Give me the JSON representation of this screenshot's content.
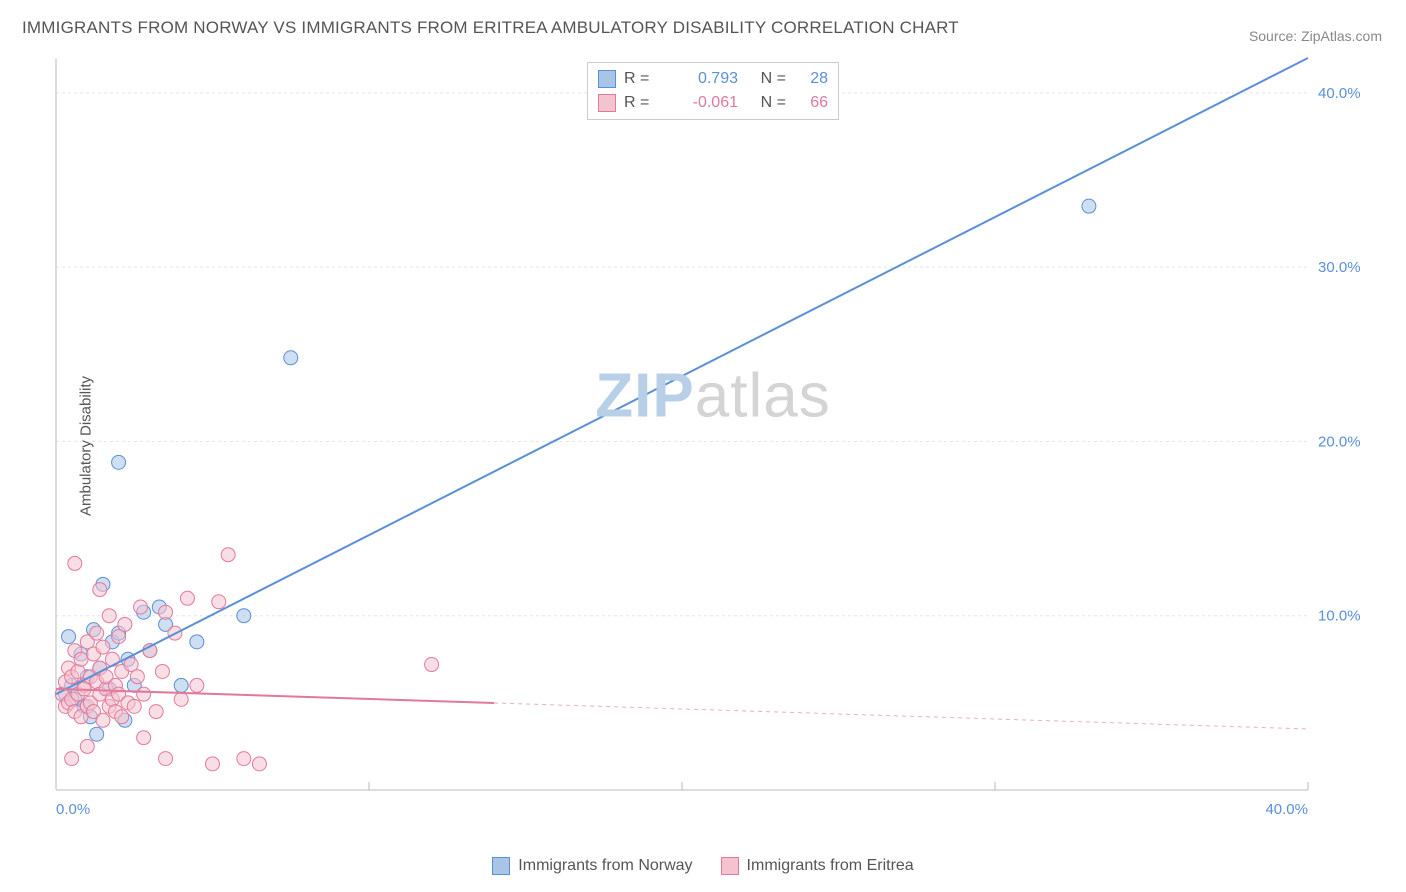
{
  "title": "IMMIGRANTS FROM NORWAY VS IMMIGRANTS FROM ERITREA AMBULATORY DISABILITY CORRELATION CHART",
  "source_label": "Source:",
  "source_name": "ZipAtlas.com",
  "y_axis_label": "Ambulatory Disability",
  "watermark": {
    "part1": "ZIP",
    "part2": "atlas"
  },
  "chart": {
    "type": "scatter",
    "background_color": "#ffffff",
    "grid_color": "#e5e5e5",
    "axis_line_color": "#bbbbbb",
    "x_range": [
      0,
      40
    ],
    "y_range": [
      0,
      42
    ],
    "x_ticks": [
      0,
      10,
      20,
      30,
      40
    ],
    "x_tick_labels": [
      "0.0%",
      "",
      "",
      "",
      "40.0%"
    ],
    "y_ticks": [
      10,
      20,
      30,
      40
    ],
    "y_tick_labels": [
      "10.0%",
      "20.0%",
      "30.0%",
      "40.0%"
    ],
    "tick_label_color_x": "#5b8fd6",
    "tick_label_color_y": "#5b8fd6",
    "tick_fontsize": 15,
    "marker_radius": 7,
    "marker_opacity": 0.55,
    "line_width": 2
  },
  "series": [
    {
      "name": "Immigrants from Norway",
      "color": "#6699dd",
      "fill": "#a8c5e8",
      "stroke": "#5b8fd6",
      "r_value": "0.793",
      "n_value": "28",
      "trend": {
        "x1": 0,
        "y1": 5.5,
        "x2": 40,
        "y2": 42,
        "solid_until": 40
      },
      "points": [
        [
          0.3,
          5.5
        ],
        [
          0.5,
          6.0
        ],
        [
          0.6,
          5.2
        ],
        [
          0.8,
          7.8
        ],
        [
          0.9,
          4.8
        ],
        [
          1.0,
          6.5
        ],
        [
          1.1,
          4.2
        ],
        [
          1.2,
          9.2
        ],
        [
          1.3,
          3.2
        ],
        [
          1.4,
          7.0
        ],
        [
          1.5,
          11.8
        ],
        [
          1.7,
          5.8
        ],
        [
          1.8,
          8.5
        ],
        [
          2.0,
          9.0
        ],
        [
          2.2,
          4.0
        ],
        [
          2.3,
          7.5
        ],
        [
          2.5,
          6.0
        ],
        [
          2.8,
          10.2
        ],
        [
          3.0,
          8.0
        ],
        [
          3.3,
          10.5
        ],
        [
          3.5,
          9.5
        ],
        [
          4.0,
          6.0
        ],
        [
          2.0,
          18.8
        ],
        [
          6.0,
          10.0
        ],
        [
          4.5,
          8.5
        ],
        [
          7.5,
          24.8
        ],
        [
          33.0,
          33.5
        ],
        [
          0.4,
          8.8
        ]
      ]
    },
    {
      "name": "Immigrants from Eritrea",
      "color": "#e899b0",
      "fill": "#f5c2d0",
      "stroke": "#e07a9a",
      "r_value": "-0.061",
      "n_value": "66",
      "trend": {
        "x1": 0,
        "y1": 5.8,
        "x2": 40,
        "y2": 3.5,
        "solid_until": 14
      },
      "points": [
        [
          0.2,
          5.5
        ],
        [
          0.3,
          6.2
        ],
        [
          0.3,
          4.8
        ],
        [
          0.4,
          7.0
        ],
        [
          0.4,
          5.0
        ],
        [
          0.5,
          6.5
        ],
        [
          0.5,
          5.2
        ],
        [
          0.6,
          8.0
        ],
        [
          0.6,
          4.5
        ],
        [
          0.7,
          6.8
        ],
        [
          0.7,
          5.5
        ],
        [
          0.8,
          7.5
        ],
        [
          0.8,
          4.2
        ],
        [
          0.9,
          6.0
        ],
        [
          0.9,
          5.8
        ],
        [
          1.0,
          8.5
        ],
        [
          1.0,
          4.8
        ],
        [
          1.1,
          6.5
        ],
        [
          1.1,
          5.0
        ],
        [
          1.2,
          7.8
        ],
        [
          1.2,
          4.5
        ],
        [
          1.3,
          6.2
        ],
        [
          1.3,
          9.0
        ],
        [
          1.4,
          5.5
        ],
        [
          1.4,
          7.0
        ],
        [
          1.5,
          4.0
        ],
        [
          1.5,
          8.2
        ],
        [
          1.6,
          5.8
        ],
        [
          1.6,
          6.5
        ],
        [
          1.7,
          4.8
        ],
        [
          1.7,
          10.0
        ],
        [
          1.8,
          5.2
        ],
        [
          1.8,
          7.5
        ],
        [
          1.9,
          6.0
        ],
        [
          1.9,
          4.5
        ],
        [
          2.0,
          8.8
        ],
        [
          2.0,
          5.5
        ],
        [
          2.1,
          6.8
        ],
        [
          2.1,
          4.2
        ],
        [
          2.2,
          9.5
        ],
        [
          2.3,
          5.0
        ],
        [
          2.4,
          7.2
        ],
        [
          2.5,
          4.8
        ],
        [
          2.6,
          6.5
        ],
        [
          2.7,
          10.5
        ],
        [
          2.8,
          5.5
        ],
        [
          3.0,
          8.0
        ],
        [
          3.2,
          4.5
        ],
        [
          3.4,
          6.8
        ],
        [
          3.5,
          1.8
        ],
        [
          3.8,
          9.0
        ],
        [
          4.0,
          5.2
        ],
        [
          4.2,
          11.0
        ],
        [
          4.5,
          6.0
        ],
        [
          5.0,
          1.5
        ],
        [
          5.2,
          10.8
        ],
        [
          5.5,
          13.5
        ],
        [
          6.0,
          1.8
        ],
        [
          6.5,
          1.5
        ],
        [
          0.6,
          13.0
        ],
        [
          1.0,
          2.5
        ],
        [
          1.4,
          11.5
        ],
        [
          2.8,
          3.0
        ],
        [
          3.5,
          10.2
        ],
        [
          0.5,
          1.8
        ],
        [
          12.0,
          7.2
        ]
      ]
    }
  ],
  "legend_labels": {
    "r": "R =",
    "n": "N ="
  }
}
